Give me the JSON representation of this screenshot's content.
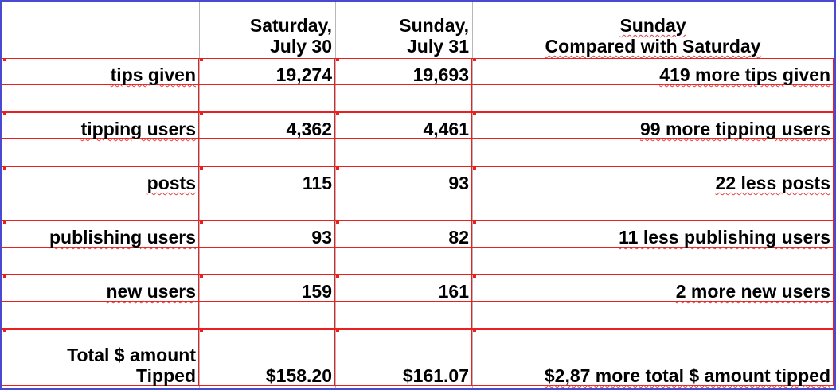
{
  "table": {
    "header": [
      [
        "Saturday,",
        "July 30"
      ],
      [
        "Sunday,",
        "July 31"
      ],
      [
        "Sunday",
        "Compared with Saturday"
      ]
    ],
    "rows": [
      {
        "label": [
          "tips given"
        ],
        "cells": [
          "19,274",
          "19,693",
          "419 more tips given"
        ]
      },
      {
        "label": [
          "tipping users"
        ],
        "cells": [
          "4,362",
          "4,461",
          "99 more tipping users"
        ]
      },
      {
        "label": [
          "posts"
        ],
        "cells": [
          "115",
          "93",
          "22 less posts"
        ]
      },
      {
        "label": [
          "publishing users"
        ],
        "cells": [
          "93",
          "82",
          "11 less publishing users"
        ]
      },
      {
        "label": [
          "new users"
        ],
        "cells": [
          "159",
          "161",
          "2 more new users"
        ]
      },
      {
        "label": [
          "Total $ amount",
          "Tipped"
        ],
        "cells": [
          "$158.20",
          "$161.07",
          "$2,87 more total $ amount tipped"
        ]
      }
    ]
  }
}
